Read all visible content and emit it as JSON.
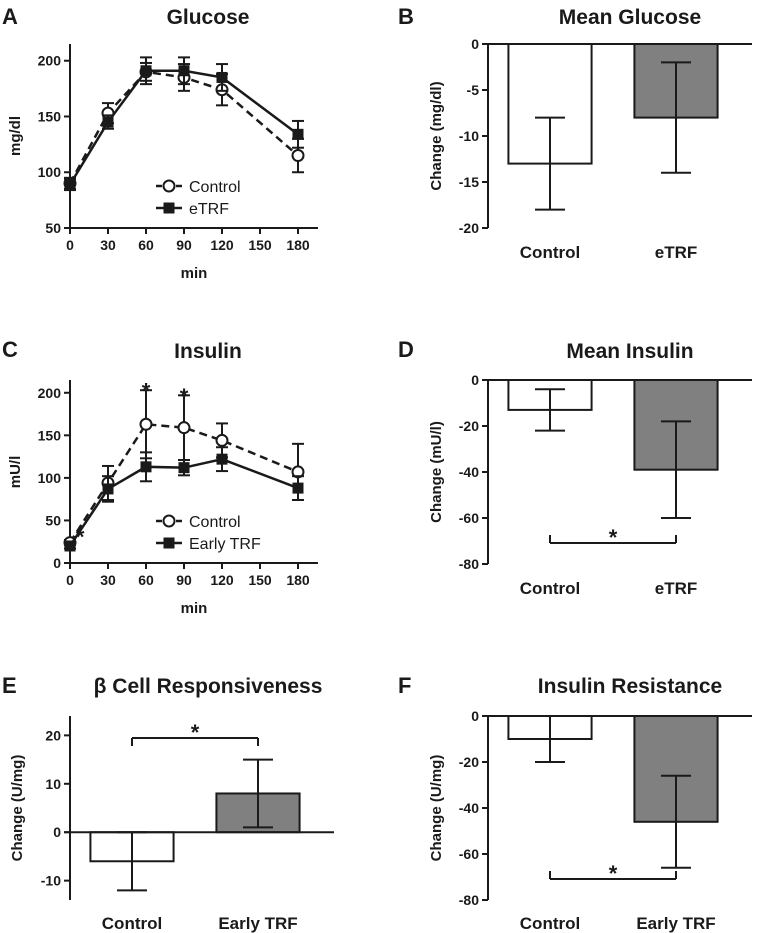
{
  "panels": {
    "A": {
      "letter": "A",
      "xlabel_text": "min"
    },
    "B": {
      "letter": "B"
    },
    "C": {
      "letter": "C",
      "xlabel_text": "min"
    },
    "D": {
      "letter": "D"
    },
    "E": {
      "letter": "E"
    },
    "F": {
      "letter": "F"
    }
  },
  "chart_data": [
    {
      "id": "A",
      "type": "line",
      "title": "Glucose",
      "xlabel": "min",
      "ylabel": "mg/dl",
      "x": [
        0,
        30,
        60,
        90,
        120,
        180
      ],
      "xticks": [
        0,
        30,
        60,
        90,
        120,
        150,
        180
      ],
      "yticks": [
        50,
        100,
        150,
        200
      ],
      "xlim": [
        0,
        180
      ],
      "ylim": [
        50,
        215
      ],
      "legend_position": "bottom-center",
      "series": [
        {
          "name": "Control",
          "marker": "open-circle",
          "dash": true,
          "values": [
            90,
            153,
            190,
            185,
            174,
            115
          ],
          "err": [
            5,
            9,
            8,
            12,
            14,
            15
          ]
        },
        {
          "name": "eTRF",
          "marker": "filled-square",
          "dash": false,
          "values": [
            89,
            145,
            191,
            191,
            185,
            134
          ],
          "err": [
            5,
            6,
            12,
            12,
            12,
            12
          ]
        }
      ],
      "annotations": []
    },
    {
      "id": "B",
      "type": "bar",
      "title": "Mean Glucose",
      "ylabel": "Change (mg/dl)",
      "categories": [
        "Control",
        "eTRF"
      ],
      "values": [
        -13,
        -8
      ],
      "err": [
        5,
        6
      ],
      "colors": [
        "#ffffff",
        "#808080"
      ],
      "yticks": [
        0,
        -5,
        -10,
        -15,
        -20
      ],
      "ylim": [
        -20,
        0
      ],
      "significance": null
    },
    {
      "id": "C",
      "type": "line",
      "title": "Insulin",
      "xlabel": "min",
      "ylabel": "mU/l",
      "x": [
        0,
        30,
        60,
        90,
        120,
        180
      ],
      "xticks": [
        0,
        30,
        60,
        90,
        120,
        150,
        180
      ],
      "yticks": [
        0,
        50,
        100,
        150,
        200
      ],
      "xlim": [
        0,
        180
      ],
      "ylim": [
        0,
        215
      ],
      "legend_position": "bottom-center",
      "series": [
        {
          "name": "Control",
          "marker": "open-circle",
          "dash": true,
          "values": [
            24,
            94,
            163,
            159,
            144,
            107
          ],
          "err": [
            3,
            20,
            40,
            38,
            20,
            33
          ]
        },
        {
          "name": "Early TRF",
          "marker": "filled-square",
          "dash": false,
          "values": [
            20,
            87,
            113,
            112,
            122,
            88
          ],
          "err": [
            3,
            15,
            17,
            9,
            14,
            14
          ]
        }
      ],
      "annotations": [
        {
          "text": "*",
          "x": 8,
          "y": 38
        },
        {
          "text": "*",
          "x": 60,
          "y": 210
        },
        {
          "text": "*",
          "x": 90,
          "y": 203
        }
      ]
    },
    {
      "id": "D",
      "type": "bar",
      "title": "Mean Insulin",
      "ylabel": "Change (mU/l)",
      "categories": [
        "Control",
        "eTRF"
      ],
      "values": [
        -13,
        -39
      ],
      "err": [
        9,
        21
      ],
      "colors": [
        "#ffffff",
        "#808080"
      ],
      "yticks": [
        0,
        -20,
        -40,
        -60,
        -80
      ],
      "ylim": [
        -80,
        0
      ],
      "significance": {
        "text": "*",
        "position": "below"
      }
    },
    {
      "id": "E",
      "type": "bar",
      "title": "β Cell Responsiveness",
      "ylabel": "Change (U/mg)",
      "categories": [
        "Control",
        "Early TRF"
      ],
      "values": [
        -6,
        8
      ],
      "err": [
        6,
        7
      ],
      "colors": [
        "#ffffff",
        "#808080"
      ],
      "yticks": [
        20,
        10,
        0,
        -10
      ],
      "ylim": [
        -14,
        24
      ],
      "significance": {
        "text": "*",
        "position": "above"
      }
    },
    {
      "id": "F",
      "type": "bar",
      "title": "Insulin Resistance",
      "ylabel": "Change (U/mg)",
      "categories": [
        "Control",
        "Early TRF"
      ],
      "values": [
        -10,
        -46
      ],
      "err": [
        10,
        20
      ],
      "colors": [
        "#ffffff",
        "#808080"
      ],
      "yticks": [
        0,
        -20,
        -40,
        -60,
        -80
      ],
      "ylim": [
        -80,
        0
      ],
      "significance": {
        "text": "*",
        "position": "below"
      }
    }
  ]
}
